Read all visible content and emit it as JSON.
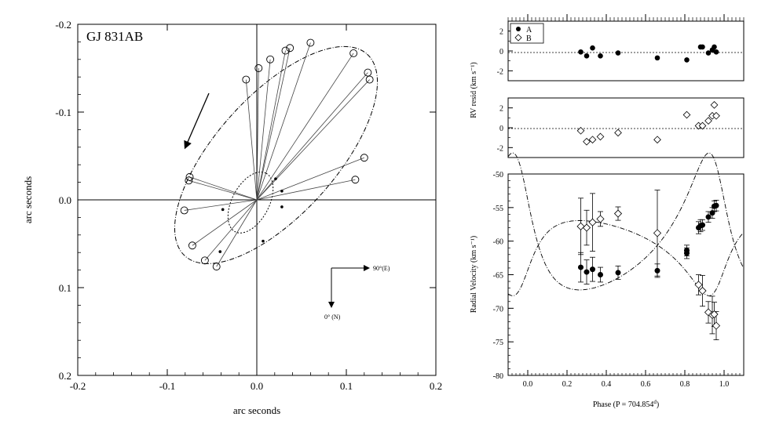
{
  "chart_data": [
    {
      "type": "scatter",
      "panel": "orbit",
      "title": "GJ 831AB",
      "xlabel": "arc seconds",
      "ylabel": "arc seconds",
      "xlim": [
        -0.2,
        0.2
      ],
      "ylim": [
        -0.2,
        0.2
      ],
      "y_inverted": true,
      "xticks": [
        -0.2,
        -0.1,
        0.0,
        0.1,
        0.2
      ],
      "xtick_labels": [
        "-0.2",
        "-0.1",
        "0.0",
        "0.1",
        "0.2"
      ],
      "yticks": [
        -0.2,
        -0.1,
        0.0,
        0.1,
        0.2
      ],
      "ytick_labels": [
        "-0.2",
        "-0.1",
        "0.0",
        "0.1",
        "0.2"
      ],
      "compass": {
        "east_label": "90°(E)",
        "north_label": "0° (N)"
      },
      "motion_arrow": "counter-clockwise",
      "relative_orbit": {
        "semi_major": 0.152,
        "semi_minor": 0.068,
        "center": [
          0.0215,
          -0.051
        ],
        "rotation_deg": -48
      },
      "photocenter_orbit": {
        "semi_major": 0.037,
        "semi_minor": 0.021,
        "center": [
          -0.007,
          0.003
        ],
        "rotation_deg": -62
      },
      "observations": [
        {
          "x": 0.06,
          "y": -0.179
        },
        {
          "x": 0.037,
          "y": -0.173
        },
        {
          "x": 0.032,
          "y": -0.17
        },
        {
          "x": 0.015,
          "y": -0.16
        },
        {
          "x": 0.002,
          "y": -0.15
        },
        {
          "x": -0.012,
          "y": -0.137
        },
        {
          "x": 0.108,
          "y": -0.167
        },
        {
          "x": 0.124,
          "y": -0.145
        },
        {
          "x": 0.126,
          "y": -0.137
        },
        {
          "x": 0.12,
          "y": -0.048
        },
        {
          "x": 0.11,
          "y": -0.023
        },
        {
          "x": -0.075,
          "y": -0.026
        },
        {
          "x": -0.076,
          "y": -0.022
        },
        {
          "x": -0.081,
          "y": 0.012
        },
        {
          "x": -0.072,
          "y": 0.052
        },
        {
          "x": -0.058,
          "y": 0.069
        },
        {
          "x": -0.045,
          "y": 0.076
        }
      ],
      "photocenter_points": [
        {
          "x": 0.021,
          "y": -0.024
        },
        {
          "x": 0.028,
          "y": -0.01
        },
        {
          "x": 0.028,
          "y": 0.008
        },
        {
          "x": 0.007,
          "y": 0.047
        },
        {
          "x": -0.041,
          "y": 0.059
        },
        {
          "x": -0.038,
          "y": 0.011
        }
      ]
    },
    {
      "type": "scatter",
      "panel": "rv_residuals",
      "ylabel": "RV resid (km s⁻¹)",
      "legend": [
        "A",
        "B"
      ],
      "legend_position": "top-left",
      "xlim": [
        -0.1,
        1.1
      ],
      "ylim_top": [
        -3,
        3
      ],
      "ylim_bottom": [
        -3,
        3
      ],
      "series": [
        {
          "name": "A",
          "marker": "filled-circle",
          "x": [
            0.27,
            0.3,
            0.33,
            0.37,
            0.46,
            0.66,
            0.81,
            0.88,
            0.89,
            0.92,
            0.94,
            0.95,
            0.96
          ],
          "y": [
            -0.1,
            -0.5,
            0.3,
            -0.5,
            -0.2,
            -0.7,
            -0.9,
            0.4,
            0.4,
            -0.2,
            0.1,
            0.4,
            -0.1
          ]
        },
        {
          "name": "B",
          "marker": "open-diamond",
          "x": [
            0.27,
            0.3,
            0.33,
            0.37,
            0.46,
            0.66,
            0.81,
            0.87,
            0.89,
            0.92,
            0.94,
            0.95,
            0.96
          ],
          "y": [
            -0.3,
            -1.4,
            -1.2,
            -0.9,
            -0.5,
            -1.2,
            1.3,
            0.2,
            0.2,
            0.7,
            1.2,
            2.3,
            1.2
          ]
        }
      ],
      "y_tick_labels": [
        "2",
        "0",
        "-2"
      ]
    },
    {
      "type": "scatter",
      "panel": "radial_velocity",
      "xlabel": "Phase (P = 704.854",
      "xlabel_sup": "d",
      "xlabel_end": ")",
      "ylabel": "Radial Velocity (km s⁻¹)",
      "xlim": [
        -0.1,
        1.1
      ],
      "ylim": [
        -80,
        -50
      ],
      "xticks": [
        0.0,
        0.2,
        0.4,
        0.6,
        0.8,
        1.0
      ],
      "xtick_labels": [
        "0.0",
        "0.2",
        "0.4",
        "0.6",
        "0.8",
        "1.0"
      ],
      "yticks": [
        -50,
        -55,
        -60,
        -65,
        -70,
        -75,
        -80
      ],
      "ytick_labels": [
        "-50",
        "-55",
        "-60",
        "-65",
        "-70",
        "-75",
        "-80"
      ],
      "series": [
        {
          "name": "A",
          "marker": "filled-circle",
          "x": [
            0.27,
            0.3,
            0.33,
            0.37,
            0.46,
            0.66,
            0.81,
            0.81,
            0.87,
            0.88,
            0.89,
            0.92,
            0.94,
            0.95,
            0.96
          ],
          "y": [
            -63.9,
            -64.6,
            -64.2,
            -65.0,
            -64.7,
            -64.4,
            -61.8,
            -61.4,
            -58.0,
            -57.7,
            -57.6,
            -56.4,
            -55.8,
            -54.8,
            -54.7
          ],
          "err": [
            2.2,
            1.8,
            1.8,
            1.1,
            1.0,
            1.0,
            0.8,
            0.8,
            0.9,
            0.9,
            0.8,
            0.8,
            0.8,
            0.8,
            0.8
          ]
        },
        {
          "name": "B",
          "marker": "open-diamond",
          "x": [
            0.27,
            0.3,
            0.33,
            0.37,
            0.46,
            0.66,
            0.87,
            0.89,
            0.92,
            0.94,
            0.95,
            0.96
          ],
          "y": [
            -57.8,
            -58.0,
            -57.2,
            -56.7,
            -55.9,
            -58.8,
            -66.5,
            -67.4,
            -70.6,
            -71.0,
            -70.9,
            -72.6
          ],
          "err": [
            4.2,
            2.6,
            4.3,
            1.1,
            1.0,
            6.4,
            1.5,
            2.3,
            1.6,
            2.8,
            1.8,
            2.1
          ]
        }
      ],
      "model_curves": "dash-dot orbit fits for A and B"
    }
  ]
}
